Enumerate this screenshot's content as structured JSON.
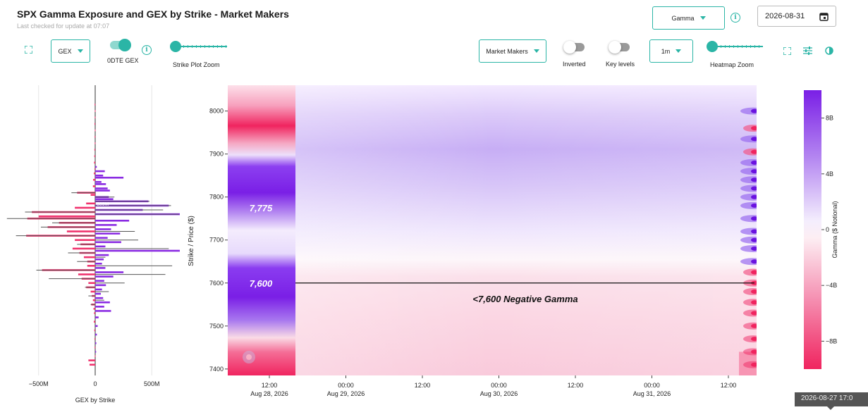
{
  "header": {
    "title": "SPX Gamma Exposure and GEX by Strike - Market Makers",
    "subtitle": "Last checked for update at 07:07"
  },
  "controls": {
    "metric_select": "Gamma",
    "date_value": "2026-08-31",
    "gex_select": "GEX",
    "odte_label": "0DTE GEX",
    "strike_zoom_label": "Strike Plot Zoom",
    "party_select": "Market Makers",
    "inverted_label": "Inverted",
    "key_levels_label": "Key levels",
    "interval_select": "1m",
    "heatmap_zoom_label": "Heatmap Zoom",
    "odte_on": true,
    "inverted_on": false,
    "key_levels_on": false,
    "accent_color": "#2bb5a6"
  },
  "tooltip": {
    "text": "2026-08-27 17:0"
  },
  "chart_data": [
    {
      "type": "bar",
      "orientation": "horizontal",
      "xlabel": "GEX by Strike",
      "ylabel": "",
      "xlim": [
        -800,
        800
      ],
      "x_ticks": [
        {
          "value": -500,
          "label": "−500M"
        },
        {
          "value": 0,
          "label": "0"
        },
        {
          "value": 500,
          "label": "500M"
        }
      ],
      "ylim": [
        7385,
        8060
      ],
      "annotation": {
        "text": "339M",
        "strike": 7785
      },
      "colors": {
        "positive": "#8a2be2",
        "negative": "#f0336e",
        "outline": "#555555"
      },
      "series": [
        {
          "name": "",
          "points": [
            [
              8015,
              -5
            ],
            [
              8000,
              -3
            ],
            [
              7985,
              -4
            ],
            [
              7970,
              -6
            ],
            [
              7955,
              -3
            ],
            [
              7940,
              -5
            ],
            [
              7925,
              -4
            ],
            [
              7910,
              -7
            ],
            [
              7895,
              -8
            ],
            [
              7880,
              -10
            ],
            [
              7870,
              14
            ],
            [
              7865,
              -6
            ],
            [
              7860,
              85
            ],
            [
              7855,
              -12
            ],
            [
              7850,
              70
            ],
            [
              7845,
              250
            ],
            [
              7840,
              -18
            ],
            [
              7835,
              55
            ],
            [
              7830,
              95
            ],
            [
              7825,
              -20
            ],
            [
              7820,
              110
            ],
            [
              7815,
              130
            ],
            [
              7810,
              -160
            ],
            [
              7805,
              -40
            ],
            [
              7800,
              120
            ],
            [
              7795,
              160
            ],
            [
              7790,
              470
            ],
            [
              7785,
              -80
            ],
            [
              7780,
              650
            ],
            [
              7775,
              -180
            ],
            [
              7770,
              420
            ],
            [
              7765,
              -560
            ],
            [
              7760,
              770
            ],
            [
              7755,
              -500
            ],
            [
              7750,
              -600
            ],
            [
              7745,
              300
            ],
            [
              7740,
              -320
            ],
            [
              7735,
              190
            ],
            [
              7730,
              -420
            ],
            [
              7725,
              140
            ],
            [
              7720,
              -250
            ],
            [
              7715,
              220
            ],
            [
              7710,
              -610
            ],
            [
              7705,
              110
            ],
            [
              7700,
              -180
            ],
            [
              7695,
              230
            ],
            [
              7690,
              -130
            ],
            [
              7685,
              90
            ],
            [
              7680,
              -200
            ],
            [
              7675,
              750
            ],
            [
              7670,
              -140
            ],
            [
              7665,
              120
            ],
            [
              7660,
              -100
            ],
            [
              7655,
              75
            ],
            [
              7650,
              -70
            ],
            [
              7645,
              60
            ],
            [
              7640,
              -70
            ],
            [
              7635,
              90
            ],
            [
              7630,
              -470
            ],
            [
              7625,
              250
            ],
            [
              7620,
              -150
            ],
            [
              7615,
              160
            ],
            [
              7610,
              -120
            ],
            [
              7605,
              80
            ],
            [
              7600,
              -60
            ],
            [
              7595,
              95
            ],
            [
              7590,
              -80
            ],
            [
              7585,
              60
            ],
            [
              7580,
              -40
            ],
            [
              7575,
              50
            ],
            [
              7570,
              -30
            ],
            [
              7565,
              70
            ],
            [
              7560,
              -20
            ],
            [
              7555,
              130
            ],
            [
              7550,
              -35
            ],
            [
              7545,
              80
            ],
            [
              7540,
              -15
            ],
            [
              7535,
              140
            ],
            [
              7530,
              -10
            ],
            [
              7520,
              30
            ],
            [
              7510,
              -12
            ],
            [
              7500,
              22
            ],
            [
              7490,
              -8
            ],
            [
              7480,
              15
            ],
            [
              7470,
              -6
            ],
            [
              7460,
              10
            ],
            [
              7450,
              -5
            ],
            [
              7440,
              8
            ],
            [
              7430,
              -4
            ],
            [
              7420,
              -60
            ],
            [
              7410,
              -50
            ]
          ]
        },
        {
          "name": "",
          "outline": true,
          "points": [
            [
              7810,
              -210
            ],
            [
              7800,
              170
            ],
            [
              7790,
              480
            ],
            [
              7780,
              670
            ],
            [
              7770,
              600
            ],
            [
              7765,
              -620
            ],
            [
              7760,
              740
            ],
            [
              7750,
              -780
            ],
            [
              7740,
              -380
            ],
            [
              7730,
              -480
            ],
            [
              7720,
              350
            ],
            [
              7710,
              -700
            ],
            [
              7700,
              380
            ],
            [
              7690,
              -160
            ],
            [
              7680,
              650
            ],
            [
              7670,
              -240
            ],
            [
              7660,
              90
            ],
            [
              7650,
              -160
            ],
            [
              7640,
              680
            ],
            [
              7630,
              -520
            ],
            [
              7620,
              620
            ],
            [
              7610,
              -410
            ],
            [
              7600,
              260
            ],
            [
              7590,
              -90
            ],
            [
              7580,
              120
            ],
            [
              7570,
              -60
            ],
            [
              7560,
              80
            ],
            [
              7550,
              -40
            ]
          ]
        }
      ]
    },
    {
      "type": "heatmap",
      "ylabel": "Strike / Price ($)",
      "xlabel": "",
      "ylim": [
        7385,
        8060
      ],
      "y_ticks": [
        7400,
        7500,
        7600,
        7700,
        7800,
        7900,
        8000
      ],
      "x_ticks": [
        {
          "line1": "12:00",
          "line2": "Aug 28, 2026"
        },
        {
          "line1": "00:00",
          "line2": "Aug 29, 2026"
        },
        {
          "line1": "12:00",
          "line2": ""
        },
        {
          "line1": "00:00",
          "line2": "Aug 30, 2026"
        },
        {
          "line1": "12:00",
          "line2": ""
        },
        {
          "line1": "00:00",
          "line2": "Aug 31, 2026"
        },
        {
          "line1": "12:00",
          "line2": ""
        }
      ],
      "level_labels": [
        {
          "text": "7,775",
          "strike": 7775
        },
        {
          "text": "7,600",
          "strike": 7600
        }
      ],
      "zero_gamma_line": {
        "strike": 7600,
        "label": "<7,600 Negative Gamma"
      },
      "colorbar": {
        "label": "Gamma ($ Notional)",
        "range": [
          -10,
          10
        ],
        "ticks": [
          {
            "value": 8,
            "label": "8B"
          },
          {
            "value": 4,
            "label": "4B"
          },
          {
            "value": 0,
            "label": "0"
          },
          {
            "value": -4,
            "label": "−4B"
          },
          {
            "value": -8,
            "label": "−8B"
          }
        ],
        "positive_color": "#7a1fe6",
        "negative_color": "#f0245f"
      }
    }
  ]
}
